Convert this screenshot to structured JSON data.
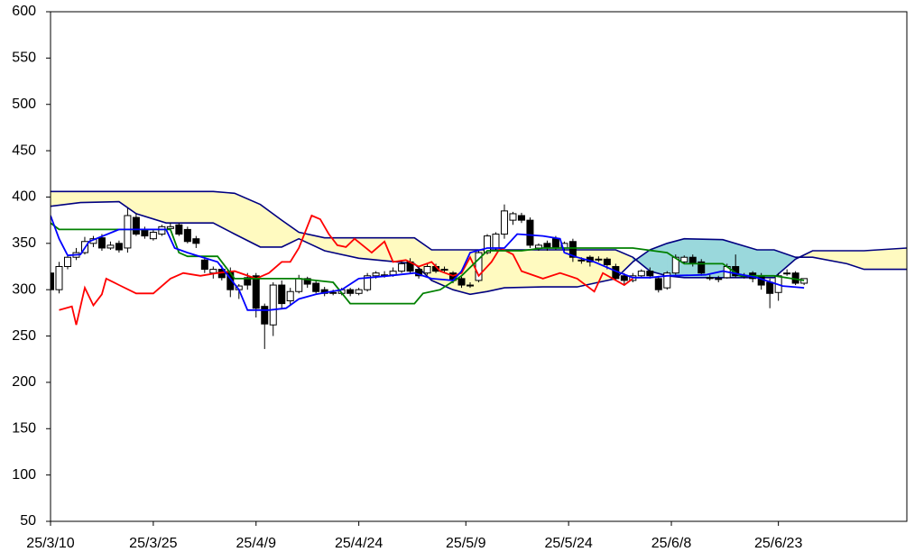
{
  "chart_data": {
    "type": "candlestick",
    "xlim": [
      0,
      100
    ],
    "ylim": [
      50,
      600
    ],
    "yticks": [
      50,
      100,
      150,
      200,
      250,
      300,
      350,
      400,
      450,
      500,
      550,
      600
    ],
    "xticks": [
      {
        "value": 0,
        "label": "25/3/10"
      },
      {
        "value": 12,
        "label": "25/3/25"
      },
      {
        "value": 24,
        "label": "25/4/9"
      },
      {
        "value": 36,
        "label": "25/4/24"
      },
      {
        "value": 48.5,
        "label": "25/5/9"
      },
      {
        "value": 60.5,
        "label": "25/5/24"
      },
      {
        "value": 72.5,
        "label": "25/6/8"
      },
      {
        "value": 85,
        "label": "25/6/23"
      }
    ],
    "candles": {
      "up_color": "#ffffff",
      "down_color": "#000000",
      "x": [
        0,
        1,
        2,
        3,
        4,
        5,
        6,
        7,
        8,
        9,
        10,
        11,
        12,
        13,
        14,
        15,
        16,
        17,
        18,
        19,
        20,
        21,
        22,
        23,
        24,
        25,
        26,
        27,
        28,
        29,
        30,
        31,
        32,
        33,
        34,
        35,
        36,
        37,
        38,
        39,
        40,
        41,
        42,
        43,
        44,
        45,
        46,
        47,
        48,
        49,
        50,
        51,
        52,
        53,
        54,
        55,
        56,
        57,
        58,
        59,
        60,
        61,
        62,
        63,
        64,
        65,
        66,
        67,
        68,
        69,
        70,
        71,
        72,
        73,
        74,
        75,
        76,
        77,
        78,
        79,
        80,
        81,
        82,
        83,
        84,
        85,
        86,
        87,
        88
      ],
      "open": [
        318,
        300,
        325,
        335,
        340,
        350,
        356,
        345,
        350,
        345,
        378,
        365,
        355,
        360,
        366,
        370,
        365,
        355,
        332,
        318,
        322,
        320,
        300,
        313,
        315,
        282,
        262,
        305,
        288,
        298,
        312,
        307,
        300,
        297,
        296,
        300,
        296,
        300,
        315,
        316,
        316,
        320,
        330,
        322,
        318,
        325,
        322,
        318,
        312,
        305,
        310,
        340,
        345,
        360,
        375,
        380,
        375,
        345,
        350,
        355,
        345,
        352,
        332,
        335,
        333,
        333,
        325,
        315,
        310,
        315,
        320,
        312,
        302,
        318,
        330,
        335,
        330,
        313,
        312,
        313,
        325,
        315,
        318,
        315,
        308,
        297,
        318,
        318,
        307
      ],
      "high": [
        322,
        330,
        338,
        345,
        357,
        358,
        360,
        352,
        353,
        388,
        382,
        368,
        365,
        370,
        372,
        372,
        368,
        358,
        336,
        325,
        326,
        324,
        306,
        318,
        318,
        285,
        308,
        310,
        302,
        316,
        314,
        310,
        303,
        300,
        302,
        302,
        302,
        318,
        320,
        320,
        324,
        332,
        334,
        325,
        328,
        328,
        325,
        320,
        314,
        308,
        343,
        360,
        362,
        392,
        384,
        383,
        378,
        350,
        353,
        358,
        352,
        355,
        335,
        337,
        336,
        335,
        328,
        318,
        318,
        322,
        324,
        315,
        320,
        338,
        337,
        338,
        333,
        316,
        315,
        328,
        338,
        318,
        320,
        318,
        312,
        318,
        322,
        320,
        312
      ],
      "low": [
        282,
        296,
        322,
        332,
        338,
        346,
        342,
        343,
        340,
        340,
        358,
        355,
        353,
        358,
        364,
        358,
        350,
        345,
        318,
        312,
        310,
        292,
        290,
        300,
        270,
        236,
        250,
        280,
        284,
        296,
        302,
        296,
        293,
        294,
        294,
        293,
        294,
        298,
        312,
        313,
        314,
        318,
        318,
        312,
        316,
        318,
        319,
        307,
        302,
        302,
        308,
        338,
        342,
        355,
        370,
        372,
        345,
        342,
        342,
        343,
        342,
        330,
        328,
        325,
        330,
        322,
        310,
        305,
        308,
        313,
        312,
        297,
        300,
        316,
        328,
        325,
        315,
        310,
        308,
        312,
        313,
        312,
        308,
        300,
        280,
        288,
        315,
        305,
        305
      ],
      "close": [
        300,
        325,
        335,
        340,
        352,
        355,
        345,
        348,
        343,
        380,
        360,
        358,
        362,
        368,
        368,
        360,
        352,
        350,
        322,
        322,
        313,
        300,
        304,
        305,
        280,
        263,
        305,
        285,
        298,
        312,
        306,
        298,
        296,
        297,
        300,
        296,
        300,
        315,
        318,
        316,
        320,
        328,
        320,
        315,
        325,
        320,
        322,
        310,
        305,
        305,
        340,
        358,
        360,
        385,
        382,
        375,
        348,
        348,
        345,
        345,
        350,
        335,
        332,
        330,
        333,
        327,
        312,
        310,
        315,
        320,
        315,
        300,
        318,
        335,
        335,
        328,
        318,
        313,
        312,
        325,
        315,
        315,
        312,
        305,
        296,
        315,
        318,
        307,
        312
      ]
    },
    "cloud": {
      "a_above_color": "#9ad8dc",
      "b_above_color": "#fffac0",
      "span_a": {
        "color": "#000080",
        "x": [
          0,
          3.5,
          8,
          10,
          13.5,
          19,
          21.5,
          24.5,
          27,
          29,
          32,
          36,
          40.5,
          42.5,
          44.5,
          47,
          49,
          51,
          53,
          57.5,
          61.5,
          66,
          68,
          70,
          72,
          74,
          78.5,
          82.5,
          84.5,
          87,
          89,
          93,
          95,
          100
        ],
        "values": [
          390,
          394,
          395,
          382,
          372,
          372,
          360,
          346,
          346,
          355,
          342,
          334,
          330,
          328,
          310,
          300,
          295,
          298,
          302,
          303,
          303,
          312,
          330,
          343,
          350,
          355,
          354,
          343,
          343,
          335,
          335,
          328,
          322,
          322
        ]
      },
      "span_b": {
        "color": "#000080",
        "x": [
          0,
          3.5,
          8,
          10,
          13.5,
          19,
          21.5,
          24.5,
          27,
          29,
          32,
          36,
          40.5,
          42.5,
          44.5,
          47,
          49,
          51,
          53,
          57.5,
          61.5,
          66,
          68,
          70,
          72,
          74,
          78.5,
          82.5,
          84.5,
          87,
          89,
          93,
          95,
          100
        ],
        "values": [
          406,
          406,
          406,
          406,
          406,
          406,
          404,
          392,
          375,
          362,
          356,
          356,
          356,
          356,
          343,
          343,
          343,
          343,
          343,
          343,
          343,
          343,
          335,
          320,
          315,
          313,
          313,
          313,
          313,
          333,
          342,
          342,
          342,
          345
        ]
      }
    },
    "lines": [
      {
        "color": "#ff0000",
        "x": [
          1,
          2.5,
          3,
          4,
          5,
          6,
          6.5,
          8,
          10,
          12,
          14,
          15.5,
          17.5,
          19.5,
          21.5,
          24,
          25.5,
          27,
          28,
          29,
          30.5,
          31.5,
          32.5,
          33.5,
          34.5,
          35.5,
          37.5,
          39,
          40,
          41.5,
          43,
          44.5,
          45.5,
          47,
          48,
          49,
          50,
          51.5,
          52.5,
          54,
          55,
          57.5,
          59.5,
          61.5,
          63.5,
          64.5,
          67,
          68
        ],
        "values": [
          278,
          282,
          262,
          302,
          283,
          295,
          312,
          305,
          296,
          296,
          312,
          318,
          315,
          318,
          320,
          312,
          318,
          330,
          330,
          345,
          380,
          376,
          360,
          348,
          346,
          355,
          340,
          352,
          330,
          332,
          325,
          330,
          320,
          315,
          318,
          335,
          315,
          330,
          345,
          338,
          320,
          312,
          318,
          312,
          298,
          318,
          305,
          312
        ]
      },
      {
        "color": "#008000",
        "x": [
          0,
          1,
          14,
          15,
          16,
          19.5,
          21.5,
          29,
          33,
          35,
          42.5,
          43.5,
          45.5,
          48,
          51,
          55,
          57.5,
          68,
          72,
          74,
          78.5,
          80.5,
          84.5,
          88
        ],
        "values": [
          372,
          365,
          365,
          340,
          336,
          336,
          312,
          312,
          308,
          285,
          285,
          296,
          300,
          315,
          342,
          342,
          345,
          345,
          340,
          328,
          328,
          315,
          315,
          310
        ]
      },
      {
        "color": "#0000ff",
        "x": [
          0,
          1,
          2,
          3.5,
          4.5,
          8,
          13.5,
          14.5,
          16,
          19.5,
          22,
          23,
          25.5,
          27.5,
          29,
          31,
          34,
          36,
          39.5,
          42.5,
          44.5,
          47,
          48,
          49,
          51,
          53,
          54.5,
          57.5,
          59.5,
          60,
          61.5,
          63.5,
          66,
          68,
          70,
          72,
          76.5,
          78.5,
          82.5,
          85.5,
          88
        ],
        "values": [
          380,
          355,
          337,
          338,
          352,
          365,
          365,
          345,
          340,
          330,
          300,
          278,
          278,
          280,
          290,
          295,
          300,
          312,
          315,
          318,
          312,
          310,
          320,
          340,
          345,
          345,
          360,
          358,
          355,
          340,
          335,
          330,
          320,
          313,
          313,
          315,
          316,
          320,
          313,
          304,
          302
        ]
      }
    ]
  }
}
